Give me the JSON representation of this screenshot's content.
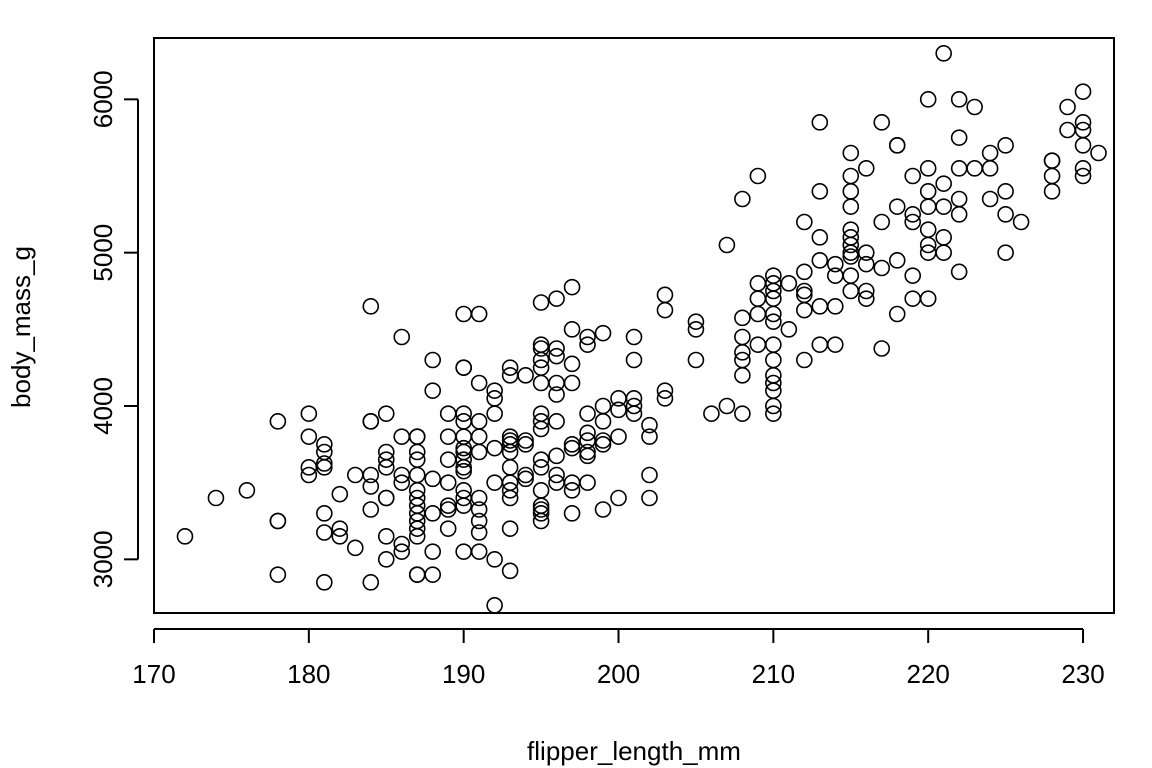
{
  "chart_data": {
    "type": "scatter",
    "title": "",
    "xlabel": "flipper_length_mm",
    "ylabel": "body_mass_g",
    "xlim": [
      170,
      232
    ],
    "ylim": [
      2650,
      6400
    ],
    "xticks": [
      170,
      180,
      190,
      200,
      210,
      220,
      230
    ],
    "yticks": [
      3000,
      4000,
      5000,
      6000
    ],
    "xtick_labels": [
      "170",
      "180",
      "190",
      "200",
      "210",
      "220",
      "230"
    ],
    "ytick_labels": [
      "3000",
      "4000",
      "5000",
      "6000"
    ],
    "grid": false,
    "legend": "none",
    "marker": "open-circle",
    "points": [
      [
        172,
        3150
      ],
      [
        174,
        3400
      ],
      [
        176,
        3450
      ],
      [
        178,
        3900
      ],
      [
        178,
        3250
      ],
      [
        178,
        3250
      ],
      [
        178,
        2900
      ],
      [
        180,
        3950
      ],
      [
        180,
        3800
      ],
      [
        180,
        3600
      ],
      [
        180,
        3550
      ],
      [
        181,
        3750
      ],
      [
        181,
        3700
      ],
      [
        181,
        3625
      ],
      [
        181,
        3600
      ],
      [
        181,
        3300
      ],
      [
        181,
        3175
      ],
      [
        181,
        2850
      ],
      [
        182,
        3425
      ],
      [
        182,
        3200
      ],
      [
        182,
        3150
      ],
      [
        183,
        3550
      ],
      [
        183,
        3075
      ],
      [
        184,
        4650
      ],
      [
        184,
        3900
      ],
      [
        184,
        3900
      ],
      [
        184,
        3550
      ],
      [
        184,
        3475
      ],
      [
        184,
        3325
      ],
      [
        184,
        2850
      ],
      [
        185,
        3950
      ],
      [
        185,
        3700
      ],
      [
        185,
        3650
      ],
      [
        185,
        3600
      ],
      [
        185,
        3400
      ],
      [
        185,
        3400
      ],
      [
        185,
        3150
      ],
      [
        185,
        3000
      ],
      [
        186,
        4450
      ],
      [
        186,
        3800
      ],
      [
        186,
        3550
      ],
      [
        186,
        3500
      ],
      [
        186,
        3100
      ],
      [
        186,
        3050
      ],
      [
        187,
        3800
      ],
      [
        187,
        3800
      ],
      [
        187,
        3700
      ],
      [
        187,
        3650
      ],
      [
        187,
        3550
      ],
      [
        187,
        3450
      ],
      [
        187,
        3400
      ],
      [
        187,
        3350
      ],
      [
        187,
        3300
      ],
      [
        187,
        3250
      ],
      [
        187,
        3200
      ],
      [
        187,
        3150
      ],
      [
        187,
        2900
      ],
      [
        187,
        2900
      ],
      [
        188,
        4300
      ],
      [
        188,
        4100
      ],
      [
        188,
        3525
      ],
      [
        188,
        3300
      ],
      [
        188,
        3050
      ],
      [
        188,
        2900
      ],
      [
        189,
        3950
      ],
      [
        189,
        3800
      ],
      [
        189,
        3650
      ],
      [
        189,
        3500
      ],
      [
        189,
        3350
      ],
      [
        189,
        3325
      ],
      [
        189,
        3200
      ],
      [
        190,
        4600
      ],
      [
        190,
        4250
      ],
      [
        190,
        4250
      ],
      [
        190,
        3950
      ],
      [
        190,
        3900
      ],
      [
        190,
        3800
      ],
      [
        190,
        3725
      ],
      [
        190,
        3700
      ],
      [
        190,
        3650
      ],
      [
        190,
        3600
      ],
      [
        190,
        3575
      ],
      [
        190,
        3450
      ],
      [
        190,
        3400
      ],
      [
        190,
        3350
      ],
      [
        190,
        3050
      ],
      [
        191,
        4600
      ],
      [
        191,
        4150
      ],
      [
        191,
        3900
      ],
      [
        191,
        3800
      ],
      [
        191,
        3700
      ],
      [
        191,
        3400
      ],
      [
        191,
        3325
      ],
      [
        191,
        3250
      ],
      [
        191,
        3175
      ],
      [
        191,
        3050
      ],
      [
        192,
        4100
      ],
      [
        192,
        4050
      ],
      [
        192,
        3950
      ],
      [
        192,
        3725
      ],
      [
        192,
        3500
      ],
      [
        192,
        3000
      ],
      [
        192,
        2700
      ],
      [
        193,
        4250
      ],
      [
        193,
        4200
      ],
      [
        193,
        3800
      ],
      [
        193,
        3775
      ],
      [
        193,
        3750
      ],
      [
        193,
        3700
      ],
      [
        193,
        3600
      ],
      [
        193,
        3500
      ],
      [
        193,
        3450
      ],
      [
        193,
        3400
      ],
      [
        193,
        3200
      ],
      [
        193,
        2925
      ],
      [
        194,
        4200
      ],
      [
        194,
        3775
      ],
      [
        194,
        3750
      ],
      [
        194,
        3550
      ],
      [
        194,
        3525
      ],
      [
        195,
        4675
      ],
      [
        195,
        4400
      ],
      [
        195,
        4375
      ],
      [
        195,
        4300
      ],
      [
        195,
        4250
      ],
      [
        195,
        4150
      ],
      [
        195,
        3950
      ],
      [
        195,
        3900
      ],
      [
        195,
        3850
      ],
      [
        195,
        3650
      ],
      [
        195,
        3600
      ],
      [
        195,
        3450
      ],
      [
        195,
        3350
      ],
      [
        195,
        3325
      ],
      [
        195,
        3300
      ],
      [
        195,
        3250
      ],
      [
        196,
        4700
      ],
      [
        196,
        4375
      ],
      [
        196,
        4325
      ],
      [
        196,
        4150
      ],
      [
        196,
        4075
      ],
      [
        196,
        3900
      ],
      [
        196,
        3675
      ],
      [
        196,
        3550
      ],
      [
        196,
        3500
      ],
      [
        197,
        4775
      ],
      [
        197,
        4500
      ],
      [
        197,
        4275
      ],
      [
        197,
        4150
      ],
      [
        197,
        3750
      ],
      [
        197,
        3725
      ],
      [
        197,
        3500
      ],
      [
        197,
        3450
      ],
      [
        197,
        3300
      ],
      [
        198,
        4450
      ],
      [
        198,
        4400
      ],
      [
        198,
        3950
      ],
      [
        198,
        3825
      ],
      [
        198,
        3775
      ],
      [
        198,
        3700
      ],
      [
        198,
        3675
      ],
      [
        198,
        3500
      ],
      [
        199,
        4475
      ],
      [
        199,
        4000
      ],
      [
        199,
        3900
      ],
      [
        199,
        3775
      ],
      [
        199,
        3750
      ],
      [
        199,
        3325
      ],
      [
        200,
        4050
      ],
      [
        200,
        3975
      ],
      [
        200,
        3800
      ],
      [
        200,
        3400
      ],
      [
        201,
        4450
      ],
      [
        201,
        4300
      ],
      [
        201,
        4050
      ],
      [
        201,
        4000
      ],
      [
        201,
        3950
      ],
      [
        202,
        3875
      ],
      [
        202,
        3800
      ],
      [
        202,
        3550
      ],
      [
        202,
        3400
      ],
      [
        203,
        4725
      ],
      [
        203,
        4625
      ],
      [
        203,
        4100
      ],
      [
        203,
        4050
      ],
      [
        205,
        4550
      ],
      [
        205,
        4500
      ],
      [
        205,
        4300
      ],
      [
        206,
        3950
      ],
      [
        207,
        5050
      ],
      [
        207,
        4000
      ],
      [
        208,
        5350
      ],
      [
        208,
        4575
      ],
      [
        208,
        4450
      ],
      [
        208,
        4350
      ],
      [
        208,
        4300
      ],
      [
        208,
        4200
      ],
      [
        208,
        3950
      ],
      [
        209,
        5500
      ],
      [
        209,
        4800
      ],
      [
        209,
        4700
      ],
      [
        209,
        4600
      ],
      [
        209,
        4400
      ],
      [
        210,
        4850
      ],
      [
        210,
        4800
      ],
      [
        210,
        4750
      ],
      [
        210,
        4700
      ],
      [
        210,
        4600
      ],
      [
        210,
        4550
      ],
      [
        210,
        4400
      ],
      [
        210,
        4300
      ],
      [
        210,
        4200
      ],
      [
        210,
        4150
      ],
      [
        210,
        4100
      ],
      [
        210,
        4000
      ],
      [
        210,
        3950
      ],
      [
        211,
        4800
      ],
      [
        211,
        4500
      ],
      [
        212,
        5200
      ],
      [
        212,
        4875
      ],
      [
        212,
        4750
      ],
      [
        212,
        4725
      ],
      [
        212,
        4625
      ],
      [
        212,
        4300
      ],
      [
        213,
        5850
      ],
      [
        213,
        5400
      ],
      [
        213,
        5100
      ],
      [
        213,
        4950
      ],
      [
        213,
        4650
      ],
      [
        213,
        4400
      ],
      [
        214,
        4925
      ],
      [
        214,
        4850
      ],
      [
        214,
        4650
      ],
      [
        214,
        4400
      ],
      [
        215,
        5650
      ],
      [
        215,
        5500
      ],
      [
        215,
        5400
      ],
      [
        215,
        5300
      ],
      [
        215,
        5150
      ],
      [
        215,
        5100
      ],
      [
        215,
        5050
      ],
      [
        215,
        5000
      ],
      [
        215,
        4975
      ],
      [
        215,
        4850
      ],
      [
        215,
        4750
      ],
      [
        216,
        5550
      ],
      [
        216,
        5000
      ],
      [
        216,
        4925
      ],
      [
        216,
        4750
      ],
      [
        216,
        4700
      ],
      [
        217,
        5850
      ],
      [
        217,
        5200
      ],
      [
        217,
        4900
      ],
      [
        217,
        4375
      ],
      [
        218,
        5700
      ],
      [
        218,
        5700
      ],
      [
        218,
        5300
      ],
      [
        218,
        4950
      ],
      [
        218,
        4600
      ],
      [
        219,
        5500
      ],
      [
        219,
        5250
      ],
      [
        219,
        5200
      ],
      [
        219,
        4850
      ],
      [
        219,
        4700
      ],
      [
        220,
        6000
      ],
      [
        220,
        5550
      ],
      [
        220,
        5400
      ],
      [
        220,
        5300
      ],
      [
        220,
        5150
      ],
      [
        220,
        5050
      ],
      [
        220,
        5000
      ],
      [
        220,
        4700
      ],
      [
        221,
        6300
      ],
      [
        221,
        5450
      ],
      [
        221,
        5300
      ],
      [
        221,
        5100
      ],
      [
        221,
        5000
      ],
      [
        222,
        6000
      ],
      [
        222,
        5750
      ],
      [
        222,
        5550
      ],
      [
        222,
        5350
      ],
      [
        222,
        5250
      ],
      [
        222,
        4875
      ],
      [
        223,
        5950
      ],
      [
        223,
        5550
      ],
      [
        224,
        5650
      ],
      [
        224,
        5550
      ],
      [
        224,
        5350
      ],
      [
        225,
        5700
      ],
      [
        225,
        5400
      ],
      [
        225,
        5250
      ],
      [
        225,
        5000
      ],
      [
        226,
        5200
      ],
      [
        228,
        5600
      ],
      [
        228,
        5600
      ],
      [
        228,
        5500
      ],
      [
        228,
        5400
      ],
      [
        229,
        5950
      ],
      [
        229,
        5800
      ],
      [
        230,
        6050
      ],
      [
        230,
        5850
      ],
      [
        230,
        5800
      ],
      [
        230,
        5700
      ],
      [
        230,
        5550
      ],
      [
        230,
        5500
      ],
      [
        231,
        5650
      ]
    ]
  }
}
